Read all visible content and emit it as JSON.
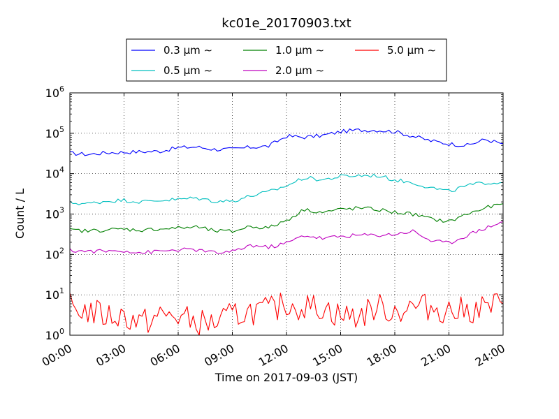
{
  "chart_data": {
    "type": "line",
    "title": "kc01e_20170903.txt",
    "xlabel": "Time on 2017-09-03 (JST)",
    "ylabel": "Count / L",
    "yscale": "log",
    "ylim": [
      1,
      1000000
    ],
    "xlim": [
      "00:00",
      "24:00"
    ],
    "x_ticks": [
      "00:00",
      "03:00",
      "06:00",
      "09:00",
      "12:00",
      "15:00",
      "18:00",
      "21:00",
      "24:00"
    ],
    "y_ticks": [
      {
        "value": 1,
        "base": "10",
        "exp": "0"
      },
      {
        "value": 10,
        "base": "10",
        "exp": "1"
      },
      {
        "value": 100,
        "base": "10",
        "exp": "2"
      },
      {
        "value": 1000,
        "base": "10",
        "exp": "3"
      },
      {
        "value": 10000,
        "base": "10",
        "exp": "4"
      },
      {
        "value": 100000,
        "base": "10",
        "exp": "5"
      },
      {
        "value": 1000000,
        "base": "10",
        "exp": "6"
      }
    ],
    "grid": true,
    "legend": {
      "placement": "top-center",
      "columns": 3
    },
    "x": [
      "00:00",
      "01:00",
      "02:00",
      "03:00",
      "04:00",
      "05:00",
      "06:00",
      "07:00",
      "08:00",
      "09:00",
      "10:00",
      "11:00",
      "12:00",
      "13:00",
      "14:00",
      "15:00",
      "16:00",
      "17:00",
      "18:00",
      "19:00",
      "20:00",
      "21:00",
      "22:00",
      "23:00",
      "24:00"
    ],
    "series": [
      {
        "name": "0.3 μm ∼",
        "color": "#0000ff",
        "values": [
          32000,
          30000,
          33000,
          34000,
          35000,
          36000,
          44000,
          46000,
          40000,
          40000,
          45000,
          48000,
          85000,
          80000,
          88000,
          110000,
          120000,
          120000,
          110000,
          85000,
          65000,
          55000,
          50000,
          70000,
          55000
        ]
      },
      {
        "name": "0.5 μm ∼",
        "color": "#00bfbf",
        "values": [
          1900,
          1800,
          2100,
          2200,
          2000,
          2200,
          2300,
          2500,
          2100,
          2100,
          2800,
          3500,
          5000,
          8000,
          7000,
          8500,
          9000,
          9000,
          7000,
          6000,
          4500,
          3600,
          5000,
          6000,
          6000
        ]
      },
      {
        "name": "1.0 μm ∼",
        "color": "#008000",
        "values": [
          400,
          380,
          410,
          420,
          400,
          430,
          450,
          480,
          380,
          370,
          500,
          450,
          700,
          1300,
          1100,
          1300,
          1400,
          1300,
          1100,
          1000,
          750,
          650,
          1000,
          1400,
          1800
        ]
      },
      {
        "name": "2.0 μm ∼",
        "color": "#bf00bf",
        "values": [
          125,
          120,
          120,
          125,
          110,
          120,
          130,
          130,
          110,
          115,
          170,
          150,
          190,
          300,
          250,
          280,
          300,
          300,
          320,
          380,
          220,
          190,
          300,
          450,
          650
        ]
      },
      {
        "name": "5.0 μm ∼",
        "color": "#ff0000",
        "values": [
          5,
          4,
          3,
          3,
          2,
          3,
          3,
          2,
          2,
          3,
          4,
          4,
          6,
          5,
          5,
          3,
          3,
          5,
          4,
          5,
          5,
          4,
          4,
          5,
          6
        ]
      }
    ]
  }
}
